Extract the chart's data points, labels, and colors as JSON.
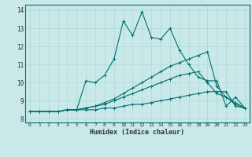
{
  "title": "",
  "xlabel": "Humidex (Indice chaleur)",
  "xlim": [
    -0.5,
    23.5
  ],
  "ylim": [
    7.8,
    14.3
  ],
  "xticks": [
    0,
    1,
    2,
    3,
    4,
    5,
    6,
    7,
    8,
    9,
    10,
    11,
    12,
    13,
    14,
    15,
    16,
    17,
    18,
    19,
    20,
    21,
    22,
    23
  ],
  "yticks": [
    8,
    9,
    10,
    11,
    12,
    13,
    14
  ],
  "bg_color": "#c9e8e8",
  "line_color": "#007070",
  "grid_color": "#b0d8d8",
  "lines": [
    {
      "x": [
        0,
        1,
        2,
        3,
        4,
        5,
        6,
        7,
        8,
        9,
        10,
        11,
        12,
        13,
        14,
        15,
        16,
        17,
        18,
        19,
        20,
        21,
        22,
        23
      ],
      "y": [
        8.4,
        8.4,
        8.4,
        8.4,
        8.5,
        8.5,
        8.5,
        8.5,
        8.6,
        8.6,
        8.7,
        8.8,
        8.8,
        8.9,
        9.0,
        9.1,
        9.2,
        9.3,
        9.4,
        9.5,
        9.5,
        9.5,
        8.7,
        8.6
      ],
      "style": "-",
      "marker": "+"
    },
    {
      "x": [
        0,
        1,
        2,
        3,
        4,
        5,
        6,
        7,
        8,
        9,
        10,
        11,
        12,
        13,
        14,
        15,
        16,
        17,
        18,
        19,
        20,
        21,
        22,
        23
      ],
      "y": [
        8.4,
        8.4,
        8.4,
        8.4,
        8.5,
        8.5,
        8.6,
        8.7,
        8.8,
        9.0,
        9.2,
        9.4,
        9.6,
        9.8,
        10.0,
        10.2,
        10.4,
        10.5,
        10.6,
        10.0,
        9.4,
        9.2,
        8.9,
        8.6
      ],
      "style": "-",
      "marker": "+"
    },
    {
      "x": [
        0,
        1,
        2,
        3,
        4,
        5,
        6,
        7,
        8,
        9,
        10,
        11,
        12,
        13,
        14,
        15,
        16,
        17,
        18,
        19,
        20,
        21,
        22,
        23
      ],
      "y": [
        8.4,
        8.4,
        8.4,
        8.4,
        8.5,
        8.5,
        10.1,
        10.0,
        10.4,
        11.3,
        13.4,
        12.6,
        13.9,
        12.5,
        12.4,
        13.0,
        11.8,
        11.0,
        10.3,
        10.1,
        10.1,
        8.7,
        9.2,
        8.6
      ],
      "style": "-",
      "marker": "+"
    },
    {
      "x": [
        0,
        1,
        2,
        3,
        4,
        5,
        6,
        7,
        8,
        9,
        10,
        11,
        12,
        13,
        14,
        15,
        16,
        17,
        18,
        19,
        20,
        21,
        22,
        23
      ],
      "y": [
        8.4,
        8.4,
        8.4,
        8.4,
        8.5,
        8.5,
        8.6,
        8.7,
        8.9,
        9.1,
        9.4,
        9.7,
        10.0,
        10.3,
        10.6,
        10.9,
        11.1,
        11.3,
        11.5,
        11.7,
        9.8,
        9.2,
        8.8,
        8.6
      ],
      "style": "-",
      "marker": "+"
    }
  ]
}
